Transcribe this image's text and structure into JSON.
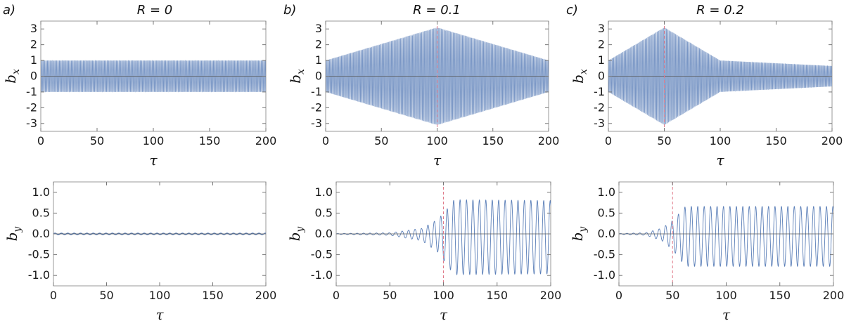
{
  "chart_data": [
    {
      "type": "line",
      "panel": "a)",
      "title": "R = 0",
      "R": 0,
      "quantity": "bx",
      "xlabel": "τ",
      "ylabel_main": "b",
      "ylabel_sub": "x",
      "xlim": [
        0,
        200
      ],
      "ylim": [
        -3.5,
        3.5
      ],
      "xticks": [
        0,
        50,
        100,
        150,
        200
      ],
      "yticks": [
        -3,
        -2,
        -1,
        0,
        1,
        2,
        3
      ],
      "marker_x": null,
      "series": [
        {
          "name": "b_x",
          "color": "#5b7fb8",
          "envelope": [
            [
              0,
              1.0
            ],
            [
              200,
              1.0
            ]
          ]
        }
      ]
    },
    {
      "type": "line",
      "panel": "b)",
      "title": "R = 0.1",
      "R": 0.1,
      "quantity": "bx",
      "xlabel": "τ",
      "ylabel_main": "b",
      "ylabel_sub": "x",
      "xlim": [
        0,
        200
      ],
      "ylim": [
        -3.5,
        3.5
      ],
      "xticks": [
        0,
        50,
        100,
        150,
        200
      ],
      "yticks": [
        -3,
        -2,
        -1,
        0,
        1,
        2,
        3
      ],
      "marker_x": 100,
      "series": [
        {
          "name": "b_x",
          "color": "#5b7fb8",
          "envelope": [
            [
              0,
              1.0
            ],
            [
              100,
              3.1
            ],
            [
              200,
              1.0
            ]
          ]
        }
      ]
    },
    {
      "type": "line",
      "panel": "c)",
      "title": "R = 0.2",
      "R": 0.2,
      "quantity": "bx",
      "xlabel": "τ",
      "ylabel_main": "b",
      "ylabel_sub": "x",
      "xlim": [
        0,
        200
      ],
      "ylim": [
        -3.5,
        3.5
      ],
      "xticks": [
        0,
        50,
        100,
        150,
        200
      ],
      "yticks": [
        -3,
        -2,
        -1,
        0,
        1,
        2,
        3
      ],
      "marker_x": 50,
      "series": [
        {
          "name": "b_x",
          "color": "#5b7fb8",
          "envelope": [
            [
              0,
              1.0
            ],
            [
              50,
              3.1
            ],
            [
              100,
              1.0
            ],
            [
              200,
              0.65
            ]
          ]
        }
      ]
    },
    {
      "type": "line",
      "panel": "",
      "title": "",
      "R": 0,
      "quantity": "by",
      "xlabel": "τ",
      "ylabel_main": "b",
      "ylabel_sub": "y",
      "xlim": [
        0,
        200
      ],
      "ylim": [
        -1.25,
        1.25
      ],
      "xticks": [
        0,
        50,
        100,
        150,
        200
      ],
      "yticks": [
        "-1.0",
        "-0.5",
        "0.0",
        "0.5",
        "1.0"
      ],
      "marker_x": null,
      "series": [
        {
          "name": "b_y",
          "color": "#5b7fb8",
          "amplitude": 0.015,
          "period": 6
        }
      ]
    },
    {
      "type": "line",
      "panel": "",
      "title": "",
      "R": 0.1,
      "quantity": "by",
      "xlabel": "τ",
      "ylabel_main": "b",
      "ylabel_sub": "y",
      "xlim": [
        0,
        200
      ],
      "ylim": [
        -1.25,
        1.25
      ],
      "xticks": [
        0,
        50,
        100,
        150,
        200
      ],
      "yticks": [
        "-1.0",
        "-0.5",
        "0.0",
        "0.5",
        "1.0"
      ],
      "marker_x": 100,
      "series": [
        {
          "name": "b_y",
          "color": "#5b7fb8",
          "period": 6,
          "offset": -0.08,
          "envelope": [
            [
              0,
              0.01
            ],
            [
              50,
              0.03
            ],
            [
              80,
              0.15
            ],
            [
              95,
              0.4
            ],
            [
              110,
              0.9
            ],
            [
              200,
              0.88
            ]
          ]
        }
      ]
    },
    {
      "type": "line",
      "panel": "",
      "title": "",
      "R": 0.2,
      "quantity": "by",
      "xlabel": "τ",
      "ylabel_main": "b",
      "ylabel_sub": "y",
      "xlim": [
        0,
        200
      ],
      "ylim": [
        -1.25,
        1.25
      ],
      "xticks": [
        0,
        50,
        100,
        150,
        200
      ],
      "yticks": [
        "-1.0",
        "-0.5",
        "0.0",
        "0.5",
        "1.0"
      ],
      "marker_x": 50,
      "series": [
        {
          "name": "b_y",
          "color": "#5b7fb8",
          "period": 6,
          "offset": -0.06,
          "envelope": [
            [
              0,
              0.01
            ],
            [
              25,
              0.03
            ],
            [
              40,
              0.15
            ],
            [
              50,
              0.35
            ],
            [
              62,
              0.72
            ],
            [
              200,
              0.72
            ]
          ]
        }
      ]
    }
  ]
}
